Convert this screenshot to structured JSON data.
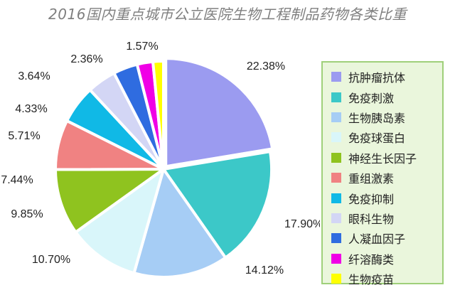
{
  "chart_data": {
    "type": "pie",
    "title": "2016国内重点城市公立医院生物工程制品药物各类比重",
    "categories": [
      "抗肿瘤抗体",
      "免疫刺激",
      "生物胰岛素",
      "免疫球蛋白",
      "神经生长因子",
      "重组激素",
      "免疫抑制",
      "眼科生物",
      "人凝血因子",
      "纤溶酶类",
      "生物疫苗"
    ],
    "values": [
      22.38,
      17.9,
      14.12,
      10.7,
      9.85,
      7.44,
      5.71,
      4.33,
      3.64,
      2.36,
      1.57
    ],
    "labels": [
      "22.38%",
      "17.90%",
      "14.12%",
      "10.70%",
      "9.85%",
      "7.44%",
      "5.71%",
      "4.33%",
      "3.64%",
      "2.36%",
      "1.57%"
    ],
    "colors": [
      "#9b9bf0",
      "#3cc8c8",
      "#a6cdf5",
      "#d9f6fa",
      "#8fc31f",
      "#f08282",
      "#10b9e6",
      "#d3d6f5",
      "#2f6ce0",
      "#f000e6",
      "#ffff00"
    ],
    "legend_position": "right",
    "start_angle": "top, clockwise"
  }
}
